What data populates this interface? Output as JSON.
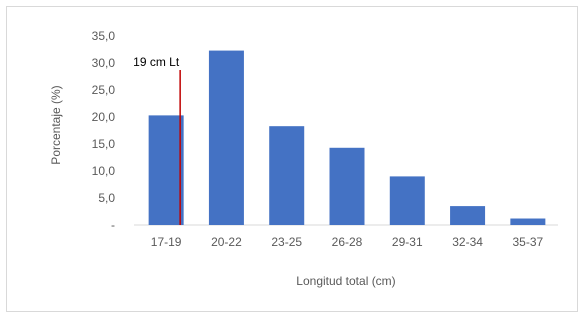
{
  "chart_data": {
    "type": "bar",
    "categories": [
      "17-19",
      "20-22",
      "23-25",
      "26-28",
      "29-31",
      "32-34",
      "35-37"
    ],
    "values": [
      20.3,
      32.3,
      18.3,
      14.3,
      9.0,
      3.5,
      1.2
    ],
    "ytick_labels": [
      "-",
      "5,0",
      "10,0",
      "15,0",
      "20,0",
      "25,0",
      "30,0",
      "35,0"
    ],
    "ylim": [
      0,
      35
    ],
    "xlabel": "Longitud total (cm)",
    "ylabel": "Porcentaje (%)",
    "grid": false,
    "bar_color": "#4472c4",
    "annotation": {
      "text": "19 cm Lt",
      "x_category_index": 0,
      "line_color": "#c00000"
    }
  }
}
